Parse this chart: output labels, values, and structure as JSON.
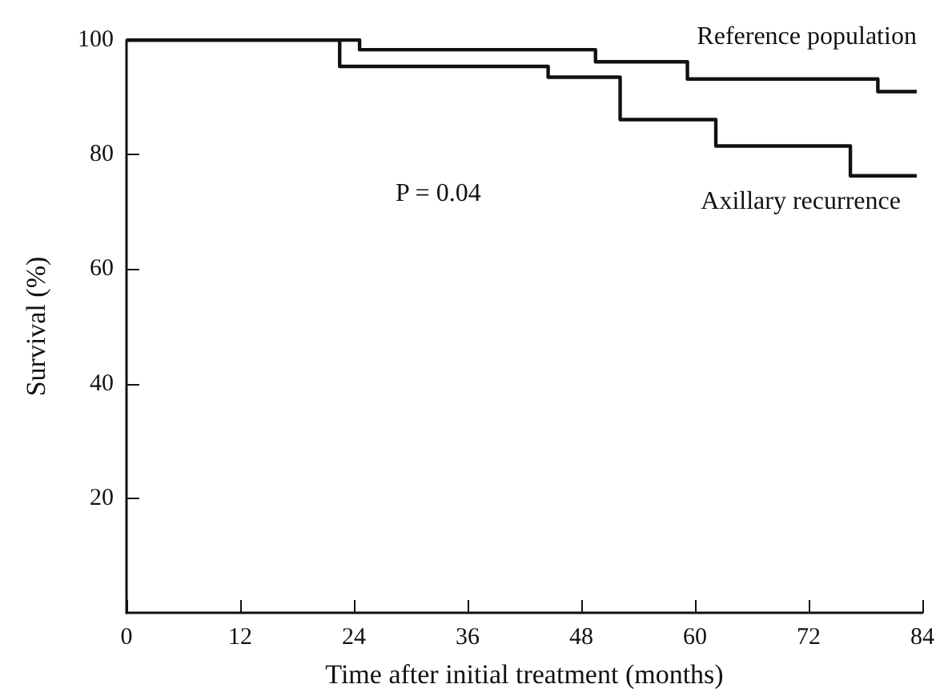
{
  "chart_data": {
    "type": "step",
    "xlabel": "Time after initial treatment (months)",
    "ylabel": "Survival (%)",
    "series": [
      {
        "name": "Reference population",
        "color": "#111111",
        "x": [
          0,
          24.6,
          49.5,
          59.2,
          79.3,
          83.4
        ],
        "values": [
          100,
          98.3,
          96.2,
          93.2,
          91.0,
          91.0
        ]
      },
      {
        "name": "Axillary recurrence",
        "color": "#111111",
        "x": [
          0,
          22.5,
          44.5,
          52.1,
          62.2,
          76.4,
          83.4
        ],
        "values": [
          100,
          95.4,
          93.5,
          86.1,
          81.5,
          76.3,
          76.3
        ]
      }
    ],
    "xlim": [
      0,
      84
    ],
    "xticks": [
      0,
      12,
      24,
      36,
      48,
      60,
      72,
      84
    ],
    "ylim": [
      0,
      100
    ],
    "yticks": [
      20,
      40,
      60,
      80,
      100
    ],
    "annotations": [
      "P = 0.04"
    ],
    "grid": false,
    "legend": false,
    "marker": "none",
    "line_style": "solid"
  }
}
